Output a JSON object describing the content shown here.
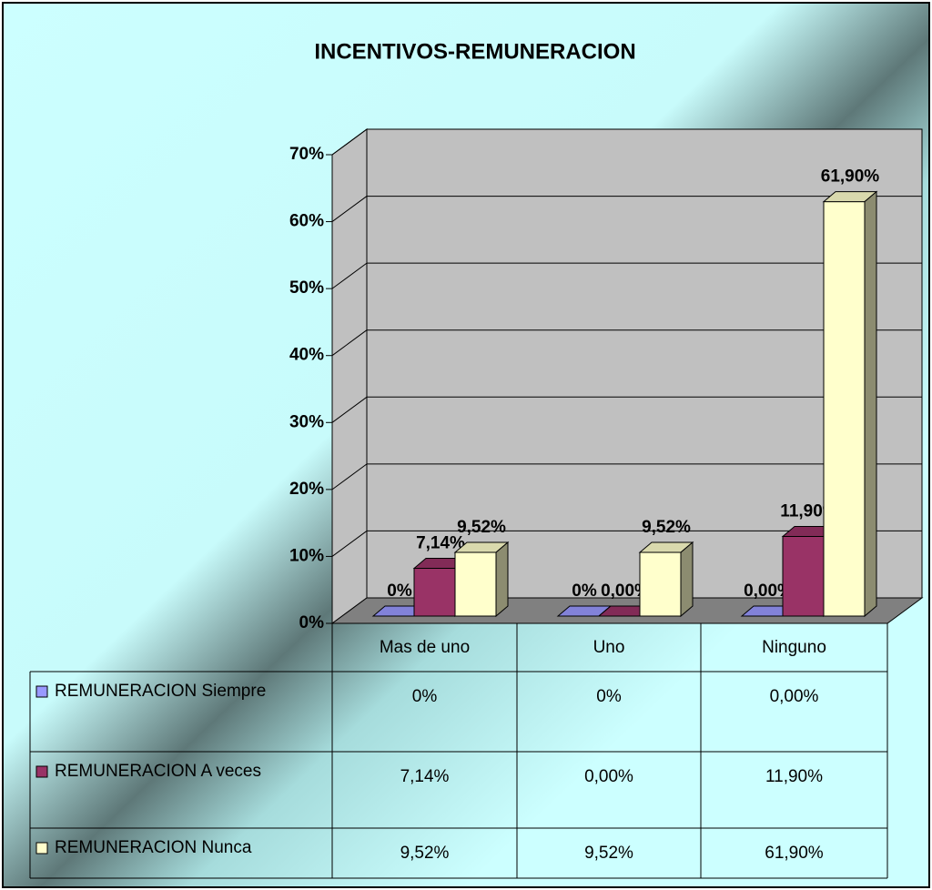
{
  "chart_data": {
    "type": "bar3d",
    "title": "INCENTIVOS-REMUNERACION",
    "categories": [
      "Mas de uno",
      "Uno",
      "Ninguno"
    ],
    "series": [
      {
        "name": "REMUNERACION Siempre",
        "color": "#9999ff",
        "values": [
          0,
          0,
          0
        ],
        "value_labels": [
          "0%",
          "0%",
          "0,00%"
        ]
      },
      {
        "name": "REMUNERACION A veces",
        "color": "#993366",
        "values": [
          7.14,
          0,
          11.9
        ],
        "value_labels": [
          "7,14%",
          "0,00%",
          "11,90%"
        ]
      },
      {
        "name": "REMUNERACION Nunca",
        "color": "#ffffcc",
        "values": [
          9.52,
          9.52,
          61.9
        ],
        "value_labels": [
          "9,52%",
          "9,52%",
          "61,90%"
        ]
      }
    ],
    "ylim": [
      0,
      70
    ],
    "yticks": [
      {
        "value": 0,
        "label": "0%"
      },
      {
        "value": 10,
        "label": "10%"
      },
      {
        "value": 20,
        "label": "20%"
      },
      {
        "value": 30,
        "label": "30%"
      },
      {
        "value": 40,
        "label": "40%"
      },
      {
        "value": 50,
        "label": "50%"
      },
      {
        "value": 60,
        "label": "60%"
      },
      {
        "value": 70,
        "label": "70%"
      }
    ],
    "grid": true,
    "data_table": true
  }
}
